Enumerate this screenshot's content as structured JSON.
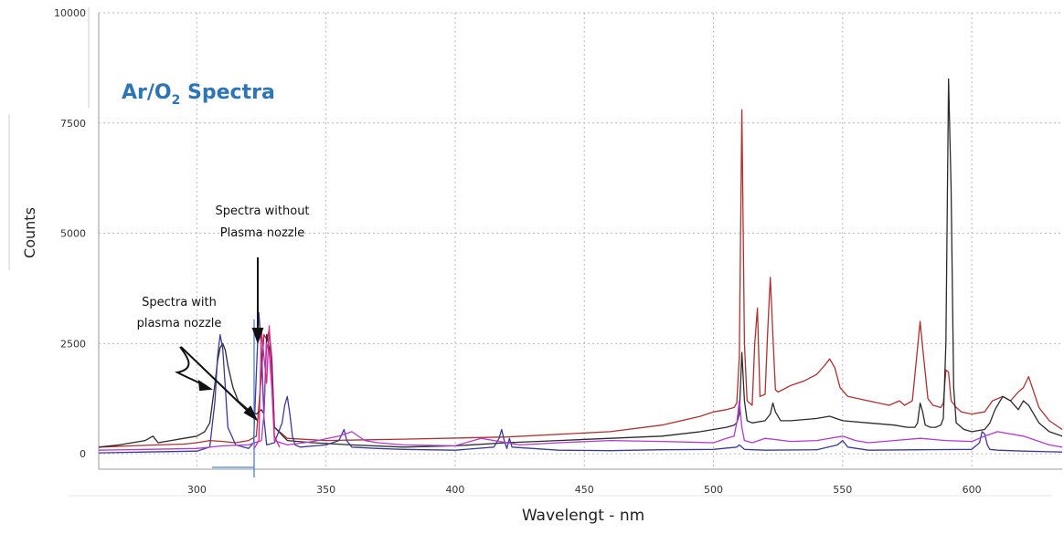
{
  "chart_data": {
    "type": "line",
    "title_main": "Ar/O",
    "title_sub": "2",
    "title_tail": " Spectra",
    "xlabel": "Wavelengt - nm",
    "ylabel": "Counts",
    "xlim": [
      262,
      635
    ],
    "ylim": [
      -350,
      10000
    ],
    "xticks": [
      300,
      350,
      400,
      450,
      500,
      550,
      600
    ],
    "yticks": [
      0,
      2500,
      5000,
      7500,
      10000
    ],
    "grid": true,
    "colors": {
      "title": "#2e75b6",
      "dark_red": "#b03030",
      "black": "#2b2b2b",
      "blue": "#3a3a9a",
      "purple": "#b23ad0",
      "pink": "#e0208a"
    },
    "series": [
      {
        "key": "dark_red",
        "x": [
          262,
          275,
          285,
          295,
          300,
          305,
          310,
          315,
          320,
          323,
          325,
          326,
          327,
          328,
          329,
          330,
          335,
          350,
          380,
          420,
          460,
          480,
          495,
          500,
          505,
          508,
          509,
          510,
          511,
          512,
          513,
          515,
          516,
          517,
          518,
          520,
          521,
          522,
          523,
          524,
          525,
          530,
          535,
          540,
          543,
          545,
          547,
          549,
          552,
          560,
          568,
          570,
          572,
          574,
          577,
          579,
          580,
          581,
          583,
          585,
          588,
          589,
          590,
          591,
          592,
          594,
          596,
          600,
          605,
          608,
          612,
          615,
          618,
          620,
          622,
          626,
          630,
          635
        ],
        "y": [
          150,
          180,
          200,
          220,
          250,
          300,
          280,
          250,
          300,
          400,
          1800,
          2700,
          2600,
          2800,
          2200,
          600,
          350,
          300,
          330,
          380,
          500,
          650,
          850,
          950,
          1000,
          1050,
          1150,
          2200,
          7800,
          2500,
          1200,
          1100,
          2500,
          3300,
          1300,
          1350,
          2800,
          4000,
          2700,
          1450,
          1400,
          1550,
          1650,
          1800,
          2000,
          2150,
          1950,
          1500,
          1300,
          1200,
          1100,
          1150,
          1200,
          1100,
          1200,
          2400,
          3000,
          2400,
          1250,
          1100,
          1050,
          1150,
          1900,
          1850,
          1200,
          1050,
          950,
          900,
          950,
          1200,
          1300,
          1200,
          1400,
          1500,
          1750,
          1050,
          750,
          550
        ]
      },
      {
        "key": "black",
        "x": [
          262,
          270,
          280,
          283,
          285,
          290,
          295,
          300,
          303,
          305,
          307,
          308,
          309,
          310,
          311,
          312,
          314,
          316,
          318,
          320,
          323,
          325,
          326,
          327,
          328,
          329,
          330,
          335,
          345,
          360,
          380,
          400,
          420,
          440,
          460,
          480,
          495,
          500,
          505,
          508,
          509,
          510,
          511,
          512,
          513,
          515,
          520,
          522,
          523,
          524,
          526,
          530,
          540,
          545,
          550,
          560,
          570,
          575,
          578,
          579,
          580,
          581,
          582,
          584,
          586,
          588,
          589,
          590,
          591,
          592,
          593,
          594,
          595,
          597,
          600,
          605,
          607,
          609,
          612,
          615,
          618,
          620,
          622,
          626,
          630,
          635
        ],
        "y": [
          150,
          200,
          300,
          400,
          250,
          300,
          350,
          400,
          500,
          700,
          1600,
          2100,
          2400,
          2500,
          2350,
          2000,
          1500,
          1200,
          1100,
          1000,
          900,
          1000,
          900,
          2700,
          2400,
          2100,
          600,
          300,
          250,
          200,
          150,
          180,
          250,
          300,
          350,
          400,
          500,
          550,
          600,
          650,
          700,
          900,
          2300,
          1200,
          750,
          700,
          750,
          900,
          1150,
          950,
          750,
          750,
          800,
          850,
          750,
          700,
          650,
          600,
          600,
          700,
          1150,
          950,
          650,
          600,
          600,
          650,
          800,
          2500,
          8500,
          6000,
          1500,
          700,
          650,
          550,
          500,
          550,
          700,
          1000,
          1300,
          1200,
          1000,
          1200,
          1100,
          700,
          500,
          400
        ]
      },
      {
        "key": "blue",
        "x": [
          262,
          280,
          300,
          305,
          307,
          308,
          309,
          310,
          311,
          312,
          315,
          320,
          322,
          323,
          324,
          325,
          326,
          327,
          330,
          333,
          334,
          335,
          336,
          337,
          338,
          340,
          350,
          355,
          357,
          358,
          360,
          370,
          380,
          400,
          415,
          417,
          418,
          419,
          420,
          421,
          422,
          440,
          460,
          480,
          500,
          509,
          510,
          511,
          512,
          520,
          540,
          548,
          550,
          552,
          560,
          580,
          600,
          603,
          604,
          605,
          606,
          607,
          610,
          620,
          635
        ],
        "y": [
          20,
          40,
          60,
          150,
          1200,
          2200,
          2700,
          2400,
          1500,
          600,
          200,
          120,
          250,
          1800,
          3200,
          2400,
          800,
          200,
          250,
          700,
          1100,
          1300,
          900,
          400,
          200,
          150,
          200,
          300,
          550,
          300,
          150,
          120,
          100,
          80,
          150,
          350,
          550,
          300,
          120,
          350,
          150,
          80,
          70,
          90,
          100,
          150,
          200,
          150,
          100,
          80,
          90,
          200,
          300,
          150,
          80,
          90,
          100,
          250,
          500,
          450,
          200,
          100,
          80,
          60,
          40
        ]
      },
      {
        "key": "purple",
        "x": [
          262,
          280,
          300,
          310,
          320,
          325,
          326,
          327,
          328,
          329,
          330,
          335,
          345,
          355,
          360,
          365,
          370,
          380,
          400,
          410,
          425,
          440,
          460,
          480,
          500,
          505,
          508,
          509,
          510,
          511,
          512,
          515,
          520,
          530,
          540,
          550,
          555,
          560,
          570,
          580,
          590,
          600,
          605,
          610,
          620,
          630,
          635
        ],
        "y": [
          80,
          100,
          120,
          180,
          200,
          300,
          900,
          2500,
          2300,
          1500,
          300,
          200,
          280,
          400,
          500,
          300,
          250,
          200,
          180,
          350,
          200,
          250,
          300,
          280,
          250,
          350,
          400,
          700,
          1200,
          600,
          300,
          250,
          350,
          280,
          300,
          400,
          300,
          250,
          300,
          350,
          300,
          280,
          400,
          500,
          400,
          200,
          150
        ]
      },
      {
        "key": "pink",
        "x": [
          322,
          324,
          325,
          326,
          327,
          328,
          329,
          330,
          332
        ],
        "y": [
          100,
          300,
          2800,
          2200,
          1600,
          2900,
          1800,
          400,
          150
        ]
      }
    ],
    "annotations": {
      "with_nozzle": [
        "Spectra with",
        "plasma nozzle"
      ],
      "without_nozzle": [
        "Spectra without",
        "Plasma nozzle"
      ]
    }
  }
}
